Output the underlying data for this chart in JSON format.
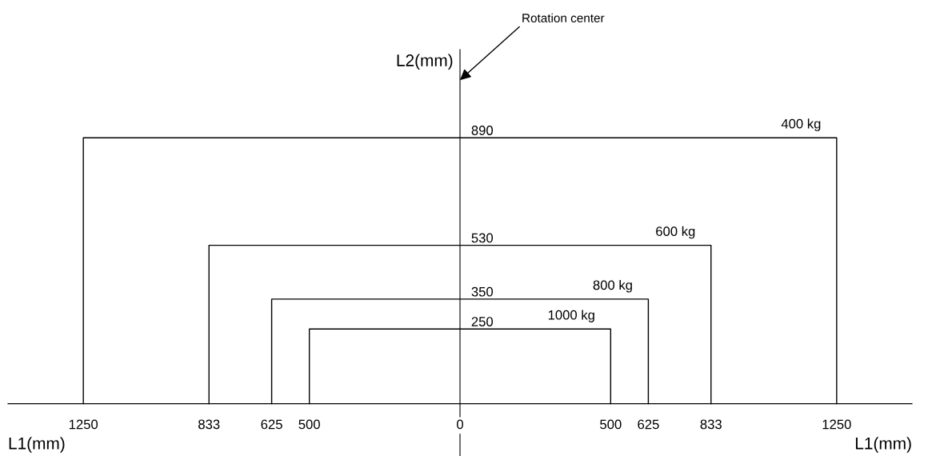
{
  "chart_data": {
    "type": "line",
    "xlabel": "L1(mm)",
    "ylabel": "L2(mm)",
    "xlim": [
      -1500,
      1500
    ],
    "ylim": [
      -175,
      1185
    ],
    "xticks": [
      {
        "value": -1250,
        "label": "1250"
      },
      {
        "value": -833,
        "label": "833"
      },
      {
        "value": -625,
        "label": "625"
      },
      {
        "value": -500,
        "label": "500"
      },
      0,
      500,
      625,
      833,
      1250
    ],
    "yticks": [
      250,
      350,
      530,
      890
    ],
    "series": [
      {
        "name": "400 kg",
        "color": "#000000",
        "x": [
          -1250,
          -1250,
          1250,
          1250
        ],
        "values": [
          0,
          890,
          890,
          0
        ]
      },
      {
        "name": "600 kg",
        "color": "#000000",
        "x": [
          -833,
          -833,
          833,
          833
        ],
        "values": [
          0,
          530,
          530,
          0
        ]
      },
      {
        "name": "800 kg",
        "color": "#000000",
        "x": [
          -625,
          -625,
          625,
          625
        ],
        "values": [
          0,
          350,
          350,
          0
        ]
      },
      {
        "name": "1000 kg",
        "color": "#000000",
        "x": [
          -500,
          -500,
          500,
          500
        ],
        "values": [
          0,
          250,
          250,
          0
        ]
      }
    ],
    "annotations": [
      "Rotation center"
    ],
    "grid": false,
    "legend": false,
    "marker": "none",
    "line_style": "solid"
  }
}
